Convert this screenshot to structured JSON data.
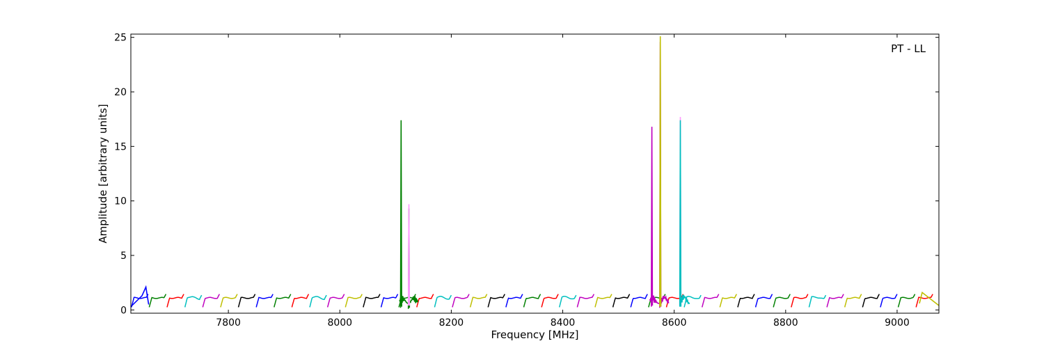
{
  "chart_data": {
    "type": "line",
    "title": "",
    "annotation": "PT - LL",
    "xlabel": "Frequency [MHz]",
    "ylabel": "Amplitude [arbitrary units]",
    "xlim": [
      7625,
      9075
    ],
    "ylim": [
      -0.3,
      25.3
    ],
    "xticks": [
      7800,
      8000,
      8200,
      8400,
      8600,
      8800,
      9000
    ],
    "yticks": [
      0,
      5,
      10,
      15,
      20,
      25
    ],
    "xtick_labels": [
      "7800",
      "8000",
      "8200",
      "8400",
      "8600",
      "8800",
      "9000"
    ],
    "ytick_labels": [
      "0",
      "5",
      "10",
      "15",
      "20",
      "25"
    ],
    "grid": false,
    "colors": [
      "#0000ff",
      "#008000",
      "#ff0000",
      "#00bfbf",
      "#bf00bf",
      "#bfbf00",
      "#000000"
    ],
    "channel_start": 7625,
    "channel_width": 32,
    "channel_count": 45,
    "baseline_level": 1.1,
    "series": [
      {
        "color": "#008000",
        "values": [
          [
            8109,
            0.2
          ],
          [
            8110,
            17.4
          ],
          [
            8111,
            0.3
          ]
        ]
      },
      {
        "color": "#008000",
        "values": [
          [
            8123,
            0.1
          ],
          [
            8124,
            9.3
          ],
          [
            8125,
            0.2
          ]
        ]
      },
      {
        "color": "#ff99ff",
        "values": [
          [
            8123,
            0.4
          ],
          [
            8124,
            9.7
          ],
          [
            8125,
            0.4
          ]
        ]
      },
      {
        "color": "#bf00bf",
        "values": [
          [
            8559,
            0.3
          ],
          [
            8560,
            16.8
          ],
          [
            8561,
            0.4
          ]
        ]
      },
      {
        "color": "#bf00bf",
        "values": [
          [
            8574,
            0.2
          ],
          [
            8575,
            24.6
          ],
          [
            8576,
            0.3
          ]
        ]
      },
      {
        "color": "#bfbf00",
        "values": [
          [
            8574,
            0.3
          ],
          [
            8575,
            25.1
          ],
          [
            8576,
            0.3
          ]
        ]
      },
      {
        "color": "#ff99ff",
        "values": [
          [
            8610,
            0.4
          ],
          [
            8611,
            17.7
          ],
          [
            8612,
            0.4
          ]
        ]
      },
      {
        "color": "#00bfbf",
        "values": [
          [
            8610,
            0.3
          ],
          [
            8611,
            17.4
          ],
          [
            8612,
            0.3
          ]
        ]
      },
      {
        "color": "#0000ff",
        "values": [
          [
            7625,
            0.3
          ],
          [
            7645,
            1.3
          ],
          [
            7652,
            2.1
          ],
          [
            7657,
            0.5
          ]
        ]
      },
      {
        "color": "#bfbf00",
        "values": [
          [
            9040,
            0.6
          ],
          [
            9045,
            1.6
          ],
          [
            9075,
            0.4
          ]
        ]
      }
    ]
  }
}
